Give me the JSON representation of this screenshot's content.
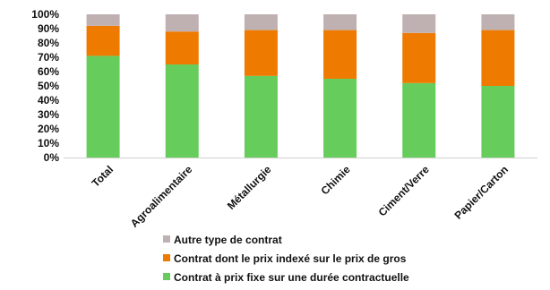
{
  "chart_data": {
    "type": "bar",
    "stacked": true,
    "categories": [
      "Total",
      "Agroalimentaire",
      "Métallurgie",
      "Chimie",
      "Ciment/Verre",
      "Papier/Carton"
    ],
    "series": [
      {
        "name": "Contrat à prix fixe sur une durée contractuelle",
        "color": "#66cc5c",
        "values": [
          71,
          65,
          57,
          55,
          52,
          50
        ]
      },
      {
        "name": "Contrat dont le prix indexé sur le prix de gros",
        "color": "#ee7a00",
        "values": [
          21,
          23,
          32,
          34,
          35,
          39
        ]
      },
      {
        "name": "Autre type de contrat",
        "color": "#bfb1b1",
        "values": [
          8,
          12,
          11,
          11,
          13,
          11
        ]
      }
    ],
    "ylim": [
      0,
      100
    ],
    "yticks": [
      "0%",
      "10%",
      "20%",
      "30%",
      "40%",
      "50%",
      "60%",
      "70%",
      "80%",
      "90%",
      "100%"
    ],
    "title": "",
    "xlabel": "",
    "ylabel": "",
    "legend_position": "bottom",
    "grid": false
  }
}
